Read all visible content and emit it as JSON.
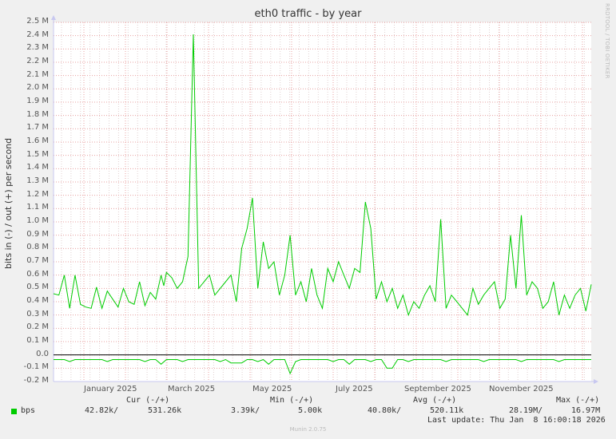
{
  "chart_data": {
    "type": "line",
    "title": "eth0 traffic - by year",
    "xlabel": "",
    "ylabel": "bits in (-) / out (+) per second",
    "ylim": [
      -0.2,
      2.5
    ],
    "y_unit": "M",
    "yticks": [
      "2.5 M",
      "2.4 M",
      "2.3 M",
      "2.2 M",
      "2.1 M",
      "2.0 M",
      "1.9 M",
      "1.8 M",
      "1.7 M",
      "1.6 M",
      "1.5 M",
      "1.4 M",
      "1.3 M",
      "1.2 M",
      "1.1 M",
      "1.0 M",
      "0.9 M",
      "0.8 M",
      "0.7 M",
      "0.6 M",
      "0.5 M",
      "0.4 M",
      "0.3 M",
      "0.2 M",
      "0.1 M",
      "0.0",
      "-0.1 M",
      "-0.2 M"
    ],
    "xticks": [
      "January 2025",
      "March 2025",
      "May 2025",
      "July 2025",
      "September 2025",
      "November 2025"
    ],
    "grid": true,
    "legend_position": "bottom",
    "series": [
      {
        "name": "bps (out, +)",
        "color": "#00cc00",
        "x_fraction": [
          0,
          0.01,
          0.02,
          0.03,
          0.04,
          0.05,
          0.06,
          0.07,
          0.08,
          0.09,
          0.1,
          0.11,
          0.12,
          0.13,
          0.14,
          0.15,
          0.16,
          0.17,
          0.18,
          0.19,
          0.2,
          0.205,
          0.21,
          0.22,
          0.23,
          0.24,
          0.25,
          0.26,
          0.27,
          0.28,
          0.29,
          0.3,
          0.31,
          0.32,
          0.33,
          0.34,
          0.35,
          0.36,
          0.37,
          0.38,
          0.39,
          0.4,
          0.41,
          0.42,
          0.43,
          0.44,
          0.45,
          0.46,
          0.47,
          0.48,
          0.49,
          0.5,
          0.51,
          0.52,
          0.53,
          0.54,
          0.55,
          0.56,
          0.57,
          0.58,
          0.59,
          0.6,
          0.61,
          0.62,
          0.63,
          0.64,
          0.65,
          0.66,
          0.67,
          0.68,
          0.69,
          0.7,
          0.71,
          0.72,
          0.73,
          0.74,
          0.75,
          0.76,
          0.77,
          0.78,
          0.79,
          0.8,
          0.81,
          0.82,
          0.83,
          0.84,
          0.85,
          0.86,
          0.87,
          0.88,
          0.89,
          0.9,
          0.91,
          0.92,
          0.93,
          0.94,
          0.95,
          0.96,
          0.97,
          0.98,
          0.99,
          1.0
        ],
        "values": [
          0.46,
          0.45,
          0.6,
          0.35,
          0.6,
          0.38,
          0.36,
          0.35,
          0.51,
          0.35,
          0.48,
          0.42,
          0.36,
          0.5,
          0.4,
          0.38,
          0.55,
          0.37,
          0.47,
          0.42,
          0.6,
          0.52,
          0.62,
          0.58,
          0.5,
          0.55,
          0.74,
          2.41,
          0.5,
          0.55,
          0.6,
          0.45,
          0.5,
          0.55,
          0.6,
          0.4,
          0.8,
          0.95,
          1.18,
          0.5,
          0.85,
          0.65,
          0.7,
          0.45,
          0.6,
          0.9,
          0.45,
          0.55,
          0.4,
          0.65,
          0.45,
          0.35,
          0.65,
          0.55,
          0.7,
          0.6,
          0.5,
          0.65,
          0.62,
          1.15,
          0.95,
          0.42,
          0.55,
          0.4,
          0.5,
          0.35,
          0.45,
          0.3,
          0.4,
          0.35,
          0.45,
          0.52,
          0.4,
          1.02,
          0.35,
          0.45,
          0.4,
          0.35,
          0.3,
          0.5,
          0.38,
          0.45,
          0.5,
          0.55,
          0.35,
          0.42,
          0.9,
          0.5,
          1.05,
          0.45,
          0.55,
          0.5,
          0.35,
          0.4,
          0.55,
          0.3,
          0.45,
          0.35,
          0.45,
          0.5,
          0.33,
          0.53
        ],
        "notes": "approximate; peaks ~2.41M (Feb 2025), ~1.18M (Apr 2025), ~1.15M (Jun 2025), ~1.02M (Aug 2025), ~1.03M (Oct 2025)"
      },
      {
        "name": "bps (in, -)",
        "color": "#00cc00",
        "values_approx": "steady around -0.03 M to -0.05 M with dips to ~-0.14 M (late May 2025) and ~-0.1 M (July 2025)"
      }
    ]
  },
  "legend": {
    "series_label": "bps",
    "series_color": "#00cc00",
    "headers": {
      "cur": "Cur (-/+)",
      "min": "Min (-/+)",
      "avg": "Avg (-/+)",
      "max": "Max (-/+)"
    },
    "values": {
      "cur_in": "42.82k/",
      "cur_out": "531.26k",
      "min_in": "3.39k/",
      "min_out": "5.00k",
      "avg_in": "40.80k/",
      "avg_out": "520.11k",
      "max_in": "28.19M/",
      "max_out": "16.97M"
    },
    "last_update": "Last update: Thu Jan  8 16:00:18 2026"
  },
  "watermark": "RRDTOOL / TOBI OETIKER",
  "footer": "Munin 2.0.75"
}
